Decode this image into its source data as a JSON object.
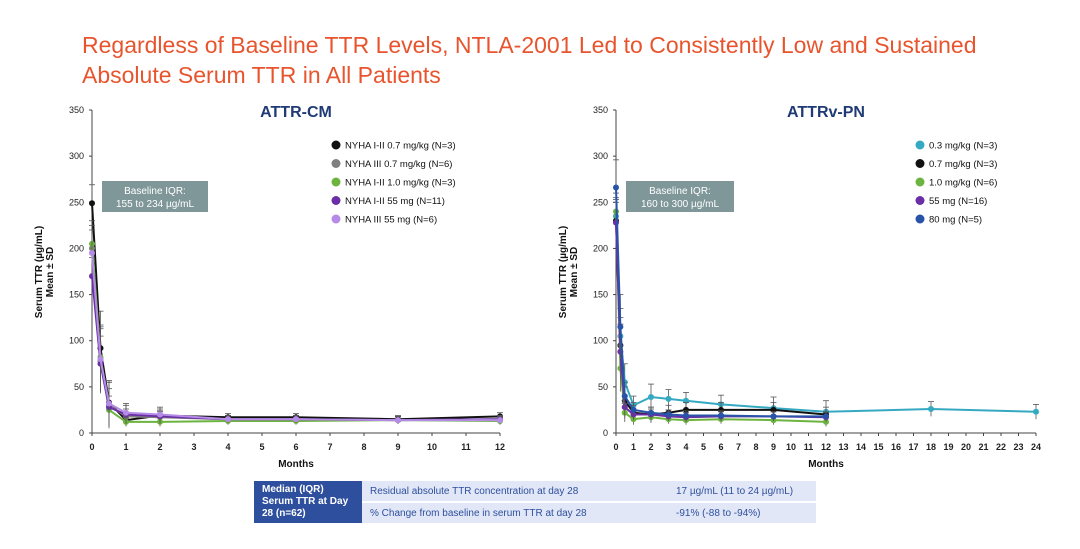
{
  "title": "Regardless of Baseline TTR Levels, NTLA-2001 Led to Consistently Low and Sustained Absolute Serum TTR in All Patients",
  "chart_data": [
    {
      "type": "line",
      "title": "ATTR-CM",
      "xlabel": "Months",
      "ylabel_line1": "Serum TTR (µg/mL)",
      "ylabel_line2": "Mean ± SD",
      "xlim": [
        0,
        12
      ],
      "ylim": [
        0,
        350
      ],
      "xticks": [
        0,
        1,
        2,
        3,
        4,
        5,
        6,
        7,
        8,
        9,
        10,
        11,
        12
      ],
      "yticks": [
        0,
        50,
        100,
        150,
        200,
        250,
        300,
        350
      ],
      "baseline_iqr_title": "Baseline IQR:",
      "baseline_iqr_range": "155 to 234 µg/mL",
      "legend_position": "top-right",
      "series": [
        {
          "name": "NYHA I-II 0.7 mg/kg (N=3)",
          "color": "#111111",
          "x": [
            0,
            0.25,
            0.5,
            1,
            2,
            4,
            6,
            9,
            12
          ],
          "y": [
            249,
            92,
            33,
            14,
            19,
            17,
            17,
            15,
            18
          ],
          "err": [
            20,
            40,
            22,
            6,
            5,
            4,
            4,
            4,
            4
          ]
        },
        {
          "name": "NYHA III 0.7 mg/kg (N=6)",
          "color": "#808080",
          "x": [
            0,
            0.25,
            0.5,
            1,
            2,
            4,
            6,
            9,
            12
          ],
          "y": [
            200,
            78,
            30,
            18,
            17,
            15,
            15,
            14,
            15
          ],
          "err": [
            25,
            35,
            25,
            8,
            6,
            4,
            4,
            4,
            4
          ]
        },
        {
          "name": "NYHA I-II 1.0 mg/kg (N=3)",
          "color": "#6db33f",
          "x": [
            0,
            0.25,
            0.5,
            1,
            2,
            4,
            6,
            9,
            12
          ],
          "y": [
            205,
            82,
            25,
            12,
            12,
            13,
            13,
            14,
            13
          ],
          "err": [
            25,
            35,
            15,
            5,
            5,
            4,
            4,
            4,
            4
          ]
        },
        {
          "name": "NYHA I-II 55 mg (N=11)",
          "color": "#6a2fa6",
          "x": [
            0,
            0.25,
            0.5,
            1,
            2,
            4,
            6,
            9,
            12
          ],
          "y": [
            170,
            75,
            28,
            20,
            18,
            15,
            15,
            14,
            15
          ],
          "err": [
            20,
            30,
            20,
            10,
            8,
            4,
            4,
            4,
            4
          ]
        },
        {
          "name": "NYHA III 55 mg (N=6)",
          "color": "#b48be6",
          "x": [
            0,
            0.25,
            0.5,
            1,
            2,
            4,
            6,
            9,
            12
          ],
          "y": [
            195,
            80,
            32,
            22,
            20,
            15,
            15,
            14,
            14
          ],
          "err": [
            25,
            35,
            25,
            10,
            8,
            4,
            4,
            4,
            4
          ]
        }
      ]
    },
    {
      "type": "line",
      "title": "ATTRv-PN",
      "xlabel": "Months",
      "ylabel_line1": "Serum TTR (µg/mL)",
      "ylabel_line2": "Mean ± SD",
      "xlim": [
        0,
        24
      ],
      "ylim": [
        0,
        350
      ],
      "xticks": [
        0,
        1,
        2,
        3,
        4,
        5,
        6,
        7,
        8,
        9,
        10,
        11,
        12,
        13,
        14,
        15,
        16,
        17,
        18,
        19,
        20,
        21,
        22,
        23,
        24
      ],
      "yticks": [
        0,
        50,
        100,
        150,
        200,
        250,
        300,
        350
      ],
      "baseline_iqr_title": "Baseline IQR:",
      "baseline_iqr_range": "160 to 300 µg/mL",
      "legend_position": "top-right",
      "series": [
        {
          "name": "0.3 mg/kg (N=3)",
          "color": "#35a9c1",
          "x": [
            0,
            0.25,
            0.5,
            1,
            2,
            3,
            4,
            6,
            9,
            12,
            18,
            24
          ],
          "y": [
            235,
            105,
            55,
            30,
            39,
            37,
            35,
            31,
            27,
            23,
            26,
            23
          ],
          "err": [
            20,
            30,
            20,
            10,
            14,
            10,
            9,
            10,
            12,
            12,
            8,
            8
          ]
        },
        {
          "name": "0.7 mg/kg (N=3)",
          "color": "#111111",
          "x": [
            0,
            0.25,
            0.5,
            1,
            2,
            3,
            4,
            6,
            9,
            12
          ],
          "y": [
            230,
            95,
            35,
            22,
            20,
            22,
            25,
            25,
            25,
            20
          ],
          "err": [
            20,
            30,
            15,
            8,
            8,
            8,
            8,
            8,
            8,
            8
          ]
        },
        {
          "name": "1.0 mg/kg (N=6)",
          "color": "#6db33f",
          "x": [
            0,
            0.25,
            0.5,
            1,
            2,
            3,
            4,
            6,
            9,
            12
          ],
          "y": [
            240,
            70,
            22,
            15,
            17,
            15,
            14,
            15,
            14,
            12
          ],
          "err": [
            20,
            25,
            10,
            6,
            6,
            5,
            5,
            5,
            5,
            5
          ]
        },
        {
          "name": "55 mg (N=16)",
          "color": "#6a2fa6",
          "x": [
            0,
            0.25,
            0.5,
            1,
            2,
            3,
            4,
            6,
            9,
            12
          ],
          "y": [
            228,
            88,
            28,
            20,
            20,
            18,
            17,
            18,
            18,
            17
          ],
          "err": [
            25,
            30,
            12,
            6,
            6,
            5,
            5,
            5,
            5,
            5
          ]
        },
        {
          "name": "80 mg (N=5)",
          "color": "#2853a8",
          "x": [
            0,
            0.25,
            0.5,
            1,
            2,
            3,
            4,
            6,
            9,
            12
          ],
          "y": [
            266,
            115,
            40,
            25,
            22,
            20,
            19,
            19,
            18,
            18
          ],
          "err": [
            30,
            35,
            15,
            8,
            6,
            5,
            5,
            5,
            5,
            5
          ]
        }
      ]
    }
  ],
  "summary": {
    "label": "Median (IQR) Serum TTR at Day 28 (n=62)",
    "rows": [
      {
        "description": "Residual absolute TTR concentration at day 28",
        "value": "17 µg/mL (11 to 24 µg/mL)"
      },
      {
        "description": "% Change from baseline in serum TTR at day 28",
        "value": "-91% (-88 to -94%)"
      }
    ]
  }
}
